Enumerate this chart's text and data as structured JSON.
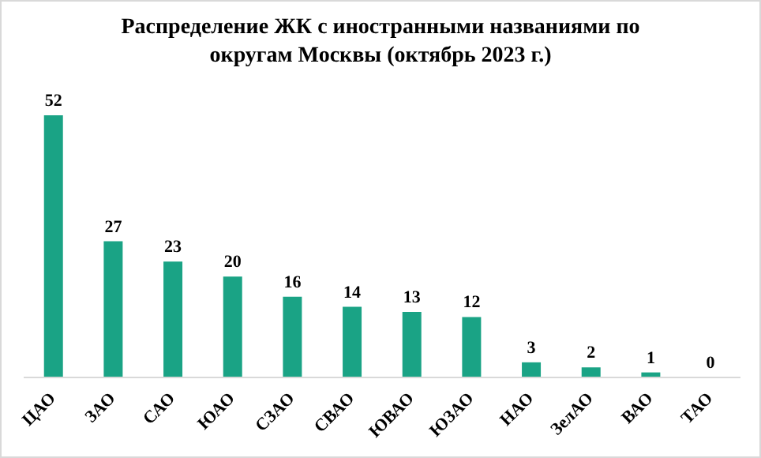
{
  "chart_data": {
    "type": "bar",
    "title": "Распределение ЖК с иностранными названиями по округам Москвы (октябрь 2023 г.)",
    "categories": [
      "ЦАО",
      "ЗАО",
      "САО",
      "ЮАО",
      "СЗАО",
      "СВАО",
      "ЮВАО",
      "ЮЗАО",
      "НАО",
      "ЗелАО",
      "ВАО",
      "ТАО"
    ],
    "values": [
      52,
      27,
      23,
      20,
      16,
      14,
      13,
      12,
      3,
      2,
      1,
      0
    ],
    "color": "#1aa385",
    "data_labels": true,
    "tick_labels": "x"
  }
}
